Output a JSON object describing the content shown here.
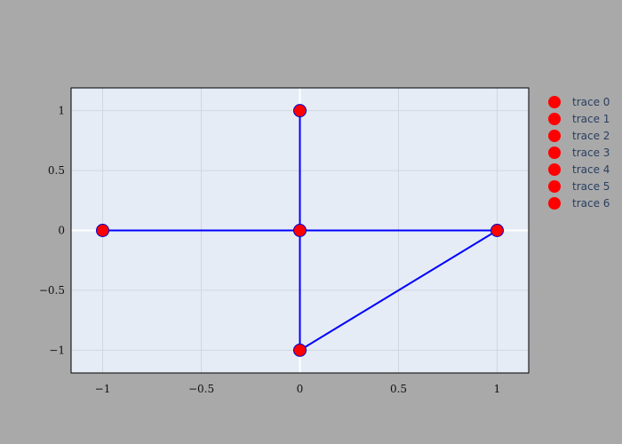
{
  "colors": {
    "page_background": "#a9a9a9",
    "plot_background": "#e5ecf6",
    "grid": "#d2d6dd",
    "zeroline": "#ffffff",
    "edge": "#0000ff",
    "marker": "#ff0000",
    "marker_outline": "#0000cd",
    "legend_text": "#2a3f5f"
  },
  "chart_data": {
    "type": "scatter",
    "title": "",
    "xlabel": "",
    "ylabel": "",
    "xlim": [
      -1.16,
      1.16
    ],
    "ylim": [
      -1.19,
      1.19
    ],
    "grid": true,
    "legend_placement": "right",
    "x_ticks": [
      -1,
      -0.5,
      0,
      0.5,
      1
    ],
    "x_tick_labels": [
      "−1",
      "−0.5",
      "0",
      "0.5",
      "1"
    ],
    "y_ticks": [
      1,
      0.5,
      0,
      -0.5,
      -1
    ],
    "y_tick_labels": [
      "1",
      "0.5",
      "0",
      "−0.5",
      "−1"
    ],
    "edges": [
      [
        [
          0,
          1
        ],
        [
          0,
          0
        ]
      ],
      [
        [
          0,
          0
        ],
        [
          0,
          -1
        ]
      ],
      [
        [
          -1,
          0
        ],
        [
          0,
          0
        ]
      ],
      [
        [
          0,
          0
        ],
        [
          1,
          0
        ]
      ],
      [
        [
          0,
          -1
        ],
        [
          1,
          0
        ]
      ]
    ],
    "series": [
      {
        "name": "trace 0",
        "x": [
          -1
        ],
        "y": [
          0
        ]
      },
      {
        "name": "trace 1",
        "x": [
          0
        ],
        "y": [
          1
        ]
      },
      {
        "name": "trace 2",
        "x": [
          0
        ],
        "y": [
          0
        ]
      },
      {
        "name": "trace 3",
        "x": [
          0
        ],
        "y": [
          -1
        ]
      },
      {
        "name": "trace 4",
        "x": [
          1
        ],
        "y": [
          0
        ]
      },
      {
        "name": "trace 5",
        "x": [],
        "y": []
      },
      {
        "name": "trace 6",
        "x": [],
        "y": []
      }
    ]
  }
}
